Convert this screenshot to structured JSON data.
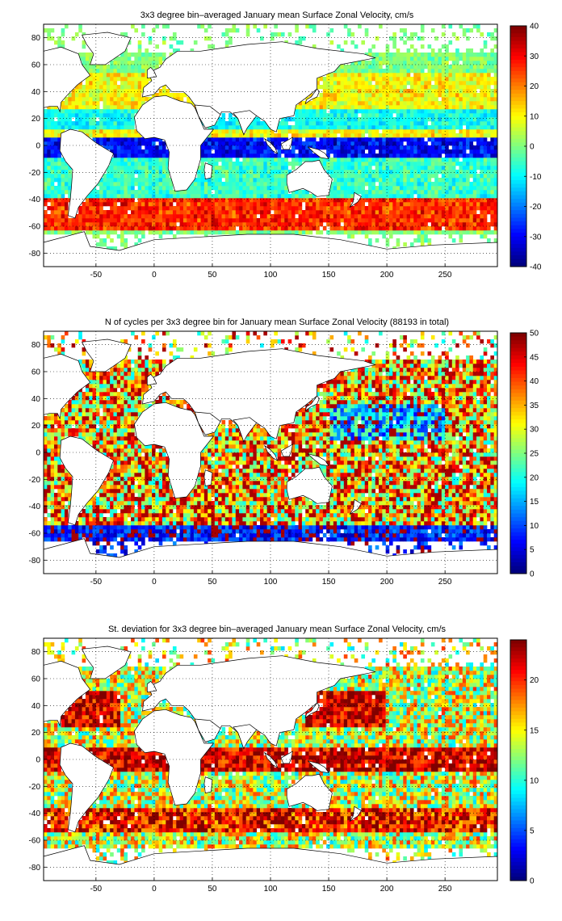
{
  "chart_data": [
    {
      "type": "heatmap",
      "title": "3x3 degree bin–averaged January mean Surface Zonal Velocity, cm/s",
      "xlabel": "",
      "ylabel": "",
      "xlim": [
        -95,
        295
      ],
      "ylim": [
        -90,
        90
      ],
      "x_ticks": [
        "-50",
        "0",
        "50",
        "100",
        "150",
        "200",
        "250"
      ],
      "y_ticks": [
        "80",
        "60",
        "40",
        "20",
        "0",
        "-20",
        "-40",
        "-60",
        "-80"
      ],
      "grid": true,
      "colorbar": {
        "min": -40,
        "max": 40,
        "ticks": [
          "40",
          "30",
          "20",
          "10",
          "0",
          "-10",
          "-20",
          "-30",
          "-40"
        ]
      },
      "field": "zonal_velocity"
    },
    {
      "type": "heatmap",
      "title": "N of cycles per 3x3 degree bin for January mean Surface Zonal Velocity (88193 in total)",
      "xlabel": "",
      "ylabel": "",
      "xlim": [
        -95,
        295
      ],
      "ylim": [
        -90,
        90
      ],
      "x_ticks": [
        "-50",
        "0",
        "50",
        "100",
        "150",
        "200",
        "250"
      ],
      "y_ticks": [
        "80",
        "60",
        "40",
        "20",
        "0",
        "-20",
        "-40",
        "-60",
        "-80"
      ],
      "grid": true,
      "colorbar": {
        "min": 0,
        "max": 50,
        "ticks": [
          "50",
          "45",
          "40",
          "35",
          "30",
          "25",
          "20",
          "15",
          "10",
          "5",
          "0"
        ]
      },
      "field": "cycle_count"
    },
    {
      "type": "heatmap",
      "title": "St. deviation for 3x3 degree bin–averaged January mean Surface Zonal Velocity, cm/s",
      "xlabel": "",
      "ylabel": "",
      "xlim": [
        -95,
        295
      ],
      "ylim": [
        -90,
        90
      ],
      "x_ticks": [
        "-50",
        "0",
        "50",
        "100",
        "150",
        "200",
        "250"
      ],
      "y_ticks": [
        "80",
        "60",
        "40",
        "20",
        "0",
        "-20",
        "-40",
        "-60",
        "-80"
      ],
      "grid": true,
      "colorbar": {
        "min": 0,
        "max": 24,
        "ticks": [
          "20",
          "15",
          "10",
          "5",
          "0"
        ]
      },
      "field": "std_deviation"
    }
  ],
  "colormap": "jet"
}
